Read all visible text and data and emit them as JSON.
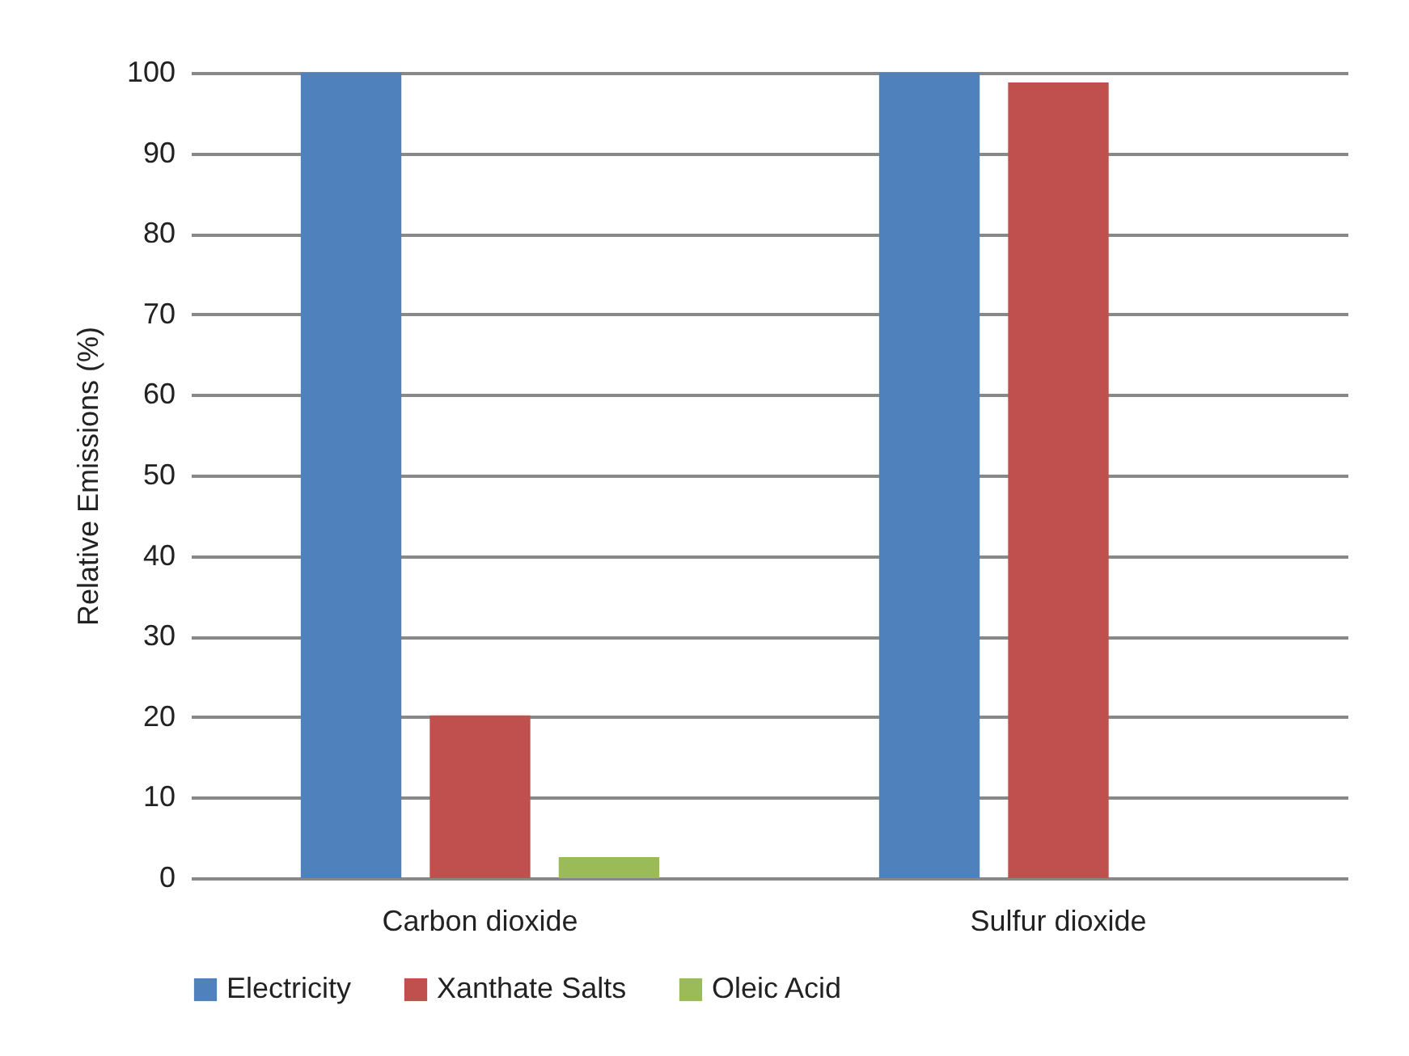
{
  "chart_data": {
    "type": "bar",
    "ylabel": "Relative Emissions (%)",
    "categories": [
      "Carbon dioxide",
      "Sulfur dioxide"
    ],
    "series": [
      {
        "name": "Electricity",
        "color": "#4f81bd",
        "values": [
          100,
          100
        ]
      },
      {
        "name": "Xanthate Salts",
        "color": "#c0504d",
        "values": [
          20.2,
          98.8
        ]
      },
      {
        "name": "Oleic Acid",
        "color": "#9bbb59",
        "values": [
          2.6,
          0
        ]
      }
    ],
    "ylim": [
      0,
      100
    ],
    "yticks": [
      0,
      10,
      20,
      30,
      40,
      50,
      60,
      70,
      80,
      90,
      100
    ],
    "grid": "y",
    "legend": "bottom"
  }
}
